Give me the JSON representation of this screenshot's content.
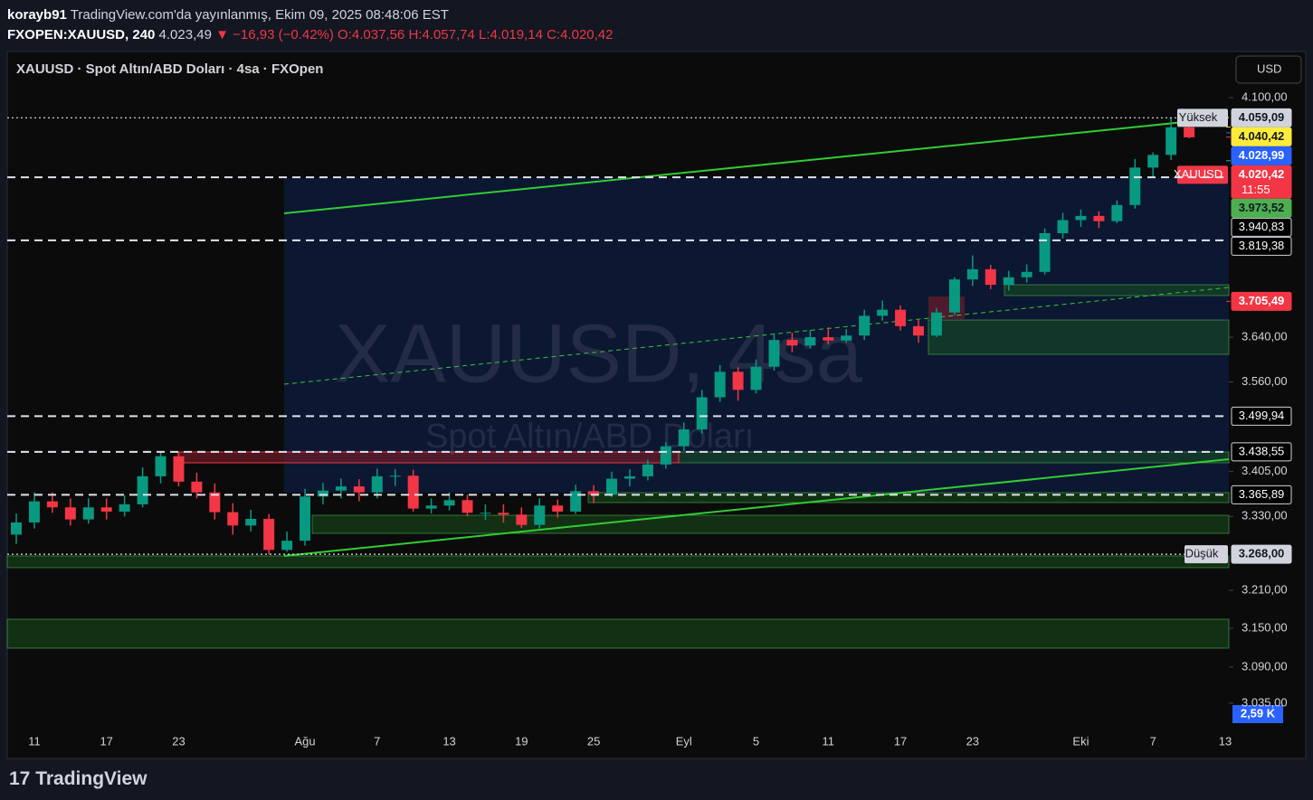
{
  "header": {
    "user": "korayb91",
    "published": "TradingView.com'da yayınlanmış, Ekim 09, 2025 08:48:06 EST",
    "symbol": "FXOPEN:XAUUSD, 240",
    "last": "4.023,49",
    "change": "▼ −16,93 (−0.42%)",
    "open": "O:4.037,56",
    "high": "H:4.057,74",
    "low": "L:4.019,14",
    "close": "C:4.020,42"
  },
  "chart_data": {
    "type": "candlestick",
    "title": "XAUUSD · Spot Altın/ABD Doları · 4sa · FXOpen",
    "watermark": "XAUUSD, 4sa",
    "watermark_subtitle": "Spot Altın/ABD Doları",
    "currency": "USD",
    "volume_label": "2,59 K",
    "categories": [
      null,
      "11",
      null,
      null,
      null,
      "17",
      null,
      null,
      null,
      "23",
      null,
      null,
      null,
      null,
      null,
      null,
      "Ağu",
      null,
      null,
      null,
      "7",
      null,
      null,
      null,
      "13",
      null,
      null,
      null,
      "19",
      null,
      null,
      null,
      "25",
      null,
      null,
      null,
      null,
      "Eyl",
      null,
      null,
      null,
      "5",
      null,
      null,
      null,
      "11",
      null,
      null,
      null,
      "17",
      null,
      null,
      null,
      "23",
      null,
      null,
      null,
      null,
      null,
      "Eki",
      null,
      null,
      null,
      "7",
      null,
      null,
      null,
      "13"
    ],
    "open": [
      3300,
      3320,
      3355,
      3345,
      3325,
      3345,
      3338,
      3350,
      3397,
      3431,
      3388,
      3370,
      3337,
      3315,
      3326,
      3275,
      3290,
      3363,
      3373,
      3380,
      3370,
      3397,
      3398,
      3343,
      3348,
      3357,
      3336,
      3336,
      3333,
      3316,
      3348,
      3338,
      3372,
      3366,
      3393,
      3397,
      3417,
      3448,
      3477,
      3533,
      3578,
      3546,
      3587,
      3635,
      3625,
      3640,
      3634,
      3643,
      3679,
      3690,
      3660,
      3643,
      3685,
      3746,
      3765,
      3736,
      3750,
      3760,
      3833,
      3858,
      3866,
      3856,
      3887,
      3960,
      3985,
      4040,
      null,
      null
    ],
    "high": [
      3335,
      3370,
      3370,
      3360,
      3360,
      3360,
      3365,
      3412,
      3440,
      3438,
      3403,
      3385,
      3352,
      3341,
      3334,
      3305,
      3376,
      3386,
      3393,
      3392,
      3410,
      3409,
      3408,
      3360,
      3370,
      3366,
      3350,
      3350,
      3345,
      3360,
      3358,
      3383,
      3382,
      3405,
      3409,
      3425,
      3455,
      3489,
      3546,
      3590,
      3586,
      3600,
      3647,
      3648,
      3653,
      3658,
      3655,
      3690,
      3707,
      3698,
      3671,
      3693,
      3750,
      3791,
      3773,
      3762,
      3774,
      3842,
      3872,
      3878,
      3875,
      3896,
      3977,
      3990,
      4059.09,
      4045,
      null,
      null
    ],
    "low": [
      3285,
      3310,
      3336,
      3315,
      3318,
      3325,
      3330,
      3345,
      3385,
      3380,
      3360,
      3325,
      3300,
      3305,
      3268,
      3272,
      3282,
      3350,
      3360,
      3355,
      3360,
      3381,
      3338,
      3335,
      3340,
      3330,
      3324,
      3320,
      3311,
      3310,
      3328,
      3334,
      3352,
      3362,
      3380,
      3390,
      3410,
      3440,
      3470,
      3525,
      3527,
      3540,
      3580,
      3613,
      3620,
      3627,
      3630,
      3635,
      3670,
      3652,
      3630,
      3640,
      3680,
      3734,
      3728,
      3725,
      3740,
      3755,
      3823,
      3845,
      3843,
      3852,
      3880,
      3942,
      3975,
      4018,
      null,
      null
    ],
    "close": [
      3320,
      3355,
      3345,
      3325,
      3345,
      3338,
      3350,
      3397,
      3431,
      3388,
      3370,
      3337,
      3315,
      3326,
      3275,
      3290,
      3363,
      3373,
      3380,
      3370,
      3397,
      3398,
      3343,
      3348,
      3357,
      3336,
      3336,
      3333,
      3316,
      3348,
      3338,
      3372,
      3366,
      3393,
      3397,
      3417,
      3448,
      3477,
      3533,
      3578,
      3546,
      3587,
      3635,
      3625,
      3640,
      3634,
      3643,
      3679,
      3690,
      3660,
      3643,
      3685,
      3746,
      3765,
      3736,
      3750,
      3760,
      3833,
      3858,
      3866,
      3856,
      3887,
      3960,
      3985,
      4040,
      4020,
      null,
      null
    ],
    "up_color": "#089981",
    "down_color": "#f23645",
    "log_scale": true,
    "grid": false,
    "ylim": [
      3005,
      4124
    ],
    "yticks": [
      {
        "value": 4100,
        "label": "4.100,00"
      },
      {
        "value": 3640,
        "label": "3.640,00"
      },
      {
        "value": 3560,
        "label": "3.560,00"
      },
      {
        "value": 3405,
        "label": "3.405,00"
      },
      {
        "value": 3330,
        "label": "3.330,00"
      },
      {
        "value": 3210,
        "label": "3.210,00"
      },
      {
        "value": 3150,
        "label": "3.150,00"
      },
      {
        "value": 3090,
        "label": "3.090,00"
      },
      {
        "value": 3035,
        "label": "3.035,00"
      }
    ],
    "levels": [
      {
        "value": 4059.09,
        "label": "4.059,09",
        "tag": "Yüksek",
        "color": "#d1d4dc",
        "style": "dotted"
      },
      {
        "value": 4040.42,
        "label": "4.040,42",
        "color": "#ffeb3b"
      },
      {
        "value": 4028.99,
        "label": "4.028,99",
        "color": "#2962ff"
      },
      {
        "value": 4020.42,
        "label": "4.020,42",
        "tag": "XAUUSD",
        "sub": "11:55",
        "color": "#f23645"
      },
      {
        "value": 3973.52,
        "label": "3.973,52",
        "color": "#4caf50"
      },
      {
        "value": 3940.83,
        "label": "3.940,83",
        "color": "#000000",
        "style": "dashed"
      },
      {
        "value": 3819.38,
        "label": "3.819,38",
        "color": "#000000",
        "style": "dashed"
      },
      {
        "value": 3705.49,
        "label": "3.705,49",
        "color": "#f23645"
      },
      {
        "value": 3499.94,
        "label": "3.499,94",
        "color": "#000000",
        "style": "dashed"
      },
      {
        "value": 3438.55,
        "label": "3.438,55",
        "color": "#000000",
        "style": "dashed"
      },
      {
        "value": 3365.89,
        "label": "3.365,89",
        "color": "#000000",
        "style": "dashed"
      },
      {
        "value": 3268,
        "label": "3.268,00",
        "tag": "Düşük",
        "color": "#d1d4dc",
        "style": "dotted"
      }
    ]
  },
  "footer": {
    "brand": "TradingView"
  }
}
